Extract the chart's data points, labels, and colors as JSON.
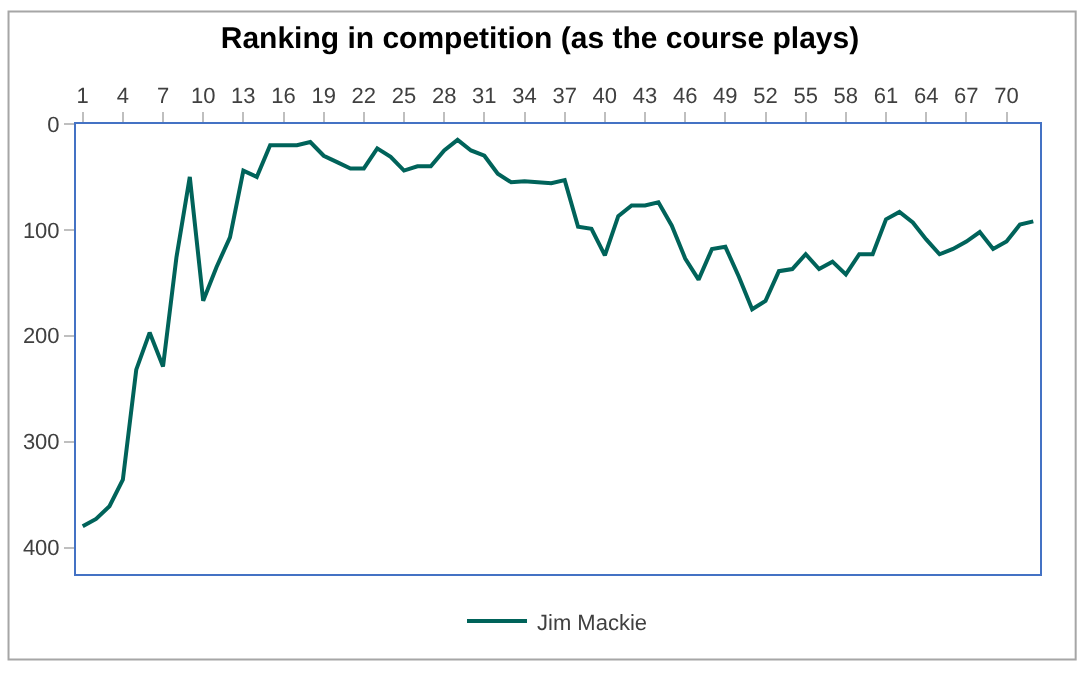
{
  "chart_data": {
    "type": "line",
    "title": "Ranking in competition (as the course plays)",
    "x": [
      1,
      2,
      3,
      4,
      5,
      6,
      7,
      8,
      9,
      10,
      11,
      12,
      13,
      14,
      15,
      16,
      17,
      18,
      19,
      20,
      21,
      22,
      23,
      24,
      25,
      26,
      27,
      28,
      29,
      30,
      31,
      32,
      33,
      34,
      35,
      36,
      37,
      38,
      39,
      40,
      41,
      42,
      43,
      44,
      45,
      46,
      47,
      48,
      49,
      50,
      51,
      52,
      53,
      54,
      55,
      56,
      57,
      58,
      59,
      60,
      61,
      62,
      63,
      64,
      65,
      66,
      67,
      68,
      69,
      70,
      71,
      72
    ],
    "series": [
      {
        "name": "Jim Mackie",
        "color": "#00635a",
        "values": [
          380,
          373,
          361,
          336,
          232,
          197,
          229,
          126,
          50,
          167,
          135,
          107,
          44,
          50,
          20,
          20,
          20,
          17,
          30,
          36,
          42,
          42,
          23,
          31,
          44,
          40,
          40,
          25,
          15,
          25,
          30,
          47,
          55,
          54,
          55,
          56,
          53,
          97,
          99,
          124,
          87,
          77,
          77,
          74,
          96,
          127,
          147,
          118,
          116,
          144,
          175,
          167,
          139,
          137,
          123,
          137,
          130,
          142,
          123,
          123,
          90,
          83,
          93,
          109,
          123,
          118,
          111,
          102,
          118,
          111,
          95,
          92
        ]
      }
    ],
    "xlim": [
      0.5,
      72.5
    ],
    "xticks": [
      1,
      4,
      7,
      10,
      13,
      16,
      19,
      22,
      25,
      28,
      31,
      34,
      37,
      40,
      43,
      46,
      49,
      52,
      55,
      58,
      61,
      64,
      67,
      70
    ],
    "ylim": [
      425,
      0
    ],
    "yticks": [
      0,
      100,
      200,
      300,
      400
    ],
    "legend": "bottom",
    "marker": "none",
    "line_style": "solid"
  }
}
